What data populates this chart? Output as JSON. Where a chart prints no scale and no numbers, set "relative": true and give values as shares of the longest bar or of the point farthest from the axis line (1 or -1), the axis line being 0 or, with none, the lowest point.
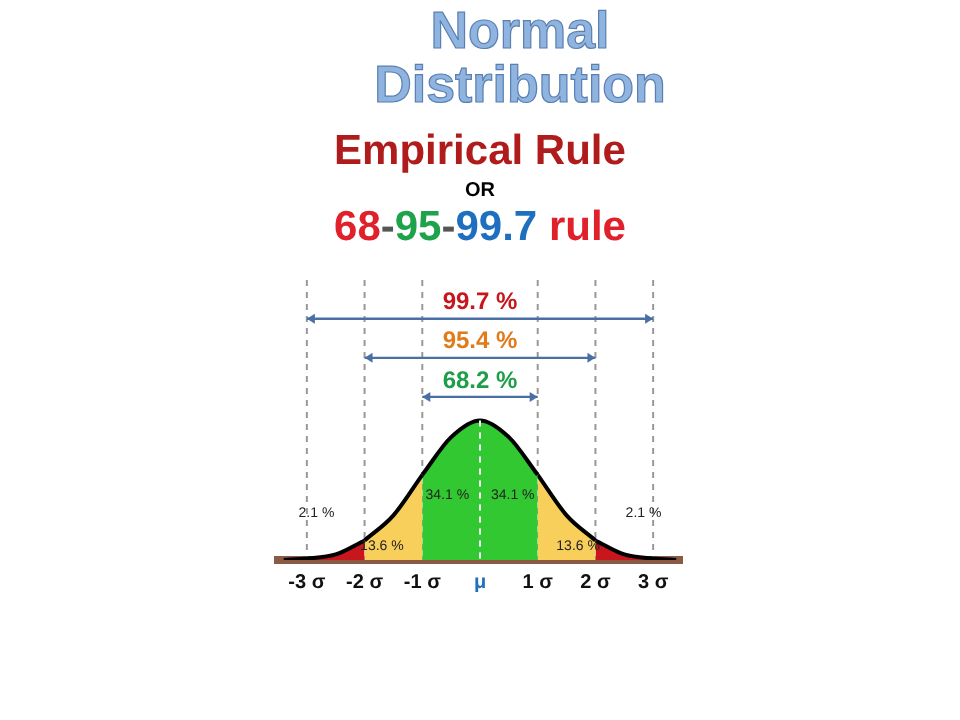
{
  "chart_data": {
    "type": "area",
    "title": "Normal Distribution",
    "subtitle": "Empirical Rule",
    "annotations": [
      "OR",
      "68-95-99.7 rule",
      "68.2 %",
      "95.4 %",
      "99.7 %",
      "2.1 %",
      "13.6 %",
      "34.1 %",
      "34.1 %",
      "13.6 %",
      "2.1 %"
    ],
    "relative": true,
    "series": [
      {
        "color": "#c8161d",
        "x": [
          -3.4,
          -3,
          -2.5,
          -2
        ],
        "values": [
          0.0,
          0.01,
          0.04,
          0.14
        ]
      },
      {
        "color": "#f8cf5a",
        "x": [
          -2,
          -1.5,
          -1
        ],
        "values": [
          0.14,
          0.32,
          0.61
        ]
      },
      {
        "color": "#32c832",
        "x": [
          -1,
          -0.5,
          0,
          0.5,
          1
        ],
        "values": [
          0.61,
          0.88,
          1,
          0.88,
          0.61
        ]
      },
      {
        "color": "#f8cf5a",
        "x": [
          1,
          1.5,
          2
        ],
        "values": [
          0.61,
          0.32,
          0.14
        ]
      },
      {
        "color": "#c8161d",
        "x": [
          2,
          2.5,
          3,
          3.4
        ],
        "values": [
          0.14,
          0.04,
          0.01,
          0.0
        ]
      }
    ],
    "xlim": [
      -3.5,
      3.5
    ],
    "xticks": [
      {
        "value": -3,
        "label": "-3 σ"
      },
      {
        "value": -2,
        "label": "-2 σ"
      },
      {
        "value": -1,
        "label": "-1 σ"
      },
      {
        "value": 0,
        "label": "μ"
      },
      {
        "value": 1,
        "label": "1 σ"
      },
      {
        "value": 2,
        "label": "2 σ"
      },
      {
        "value": 3,
        "label": "3 σ"
      }
    ],
    "ref_lines": [
      {
        "axis": "x",
        "value": -3,
        "line_style": "dashed",
        "color": "#999999"
      },
      {
        "axis": "x",
        "value": -2,
        "line_style": "dashed",
        "color": "#999999"
      },
      {
        "axis": "x",
        "value": -1,
        "line_style": "dashed",
        "color": "#999999"
      },
      {
        "axis": "x",
        "value": 0,
        "line_style": "dashed",
        "color": "#ffffff"
      },
      {
        "axis": "x",
        "value": 1,
        "line_style": "dashed",
        "color": "#999999"
      },
      {
        "axis": "x",
        "value": 2,
        "line_style": "dashed",
        "color": "#999999"
      },
      {
        "axis": "x",
        "value": 3,
        "line_style": "dashed",
        "color": "#999999"
      }
    ],
    "grid": false,
    "legend": false
  }
}
